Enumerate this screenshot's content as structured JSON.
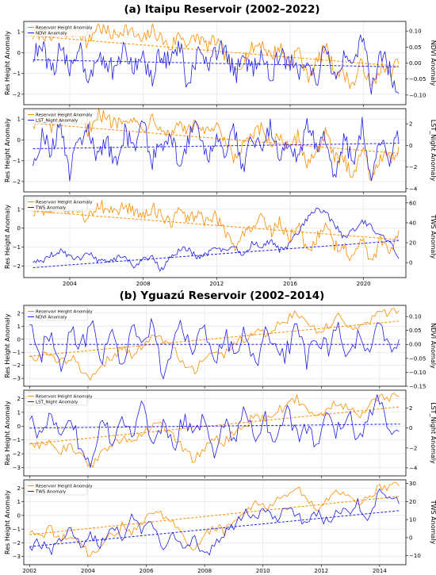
{
  "colors": {
    "reservoir": "#ff8c00",
    "other": "#1f1fe6",
    "grid": "#dcdcdc"
  },
  "sections": [
    {
      "title": "(a) Itaipu Reservoir (2002–2022)",
      "x_ticks": [
        2004,
        2008,
        2012,
        2016,
        2020
      ]
    },
    {
      "title": "(b) Yguazú Reservoir (2002–2014)",
      "x_ticks": [
        2002,
        2004,
        2006,
        2008,
        2010,
        2012,
        2014
      ]
    }
  ],
  "chart_data": [
    {
      "type": "line",
      "section": 0,
      "xlim": [
        2001.5,
        2022.3
      ],
      "ylim": [
        -2.5,
        1.5
      ],
      "y2lim": [
        -0.13,
        0.13
      ],
      "ylabel": "Res Height Anomaly",
      "y2label": "NDVI Anomaly",
      "yticks": [
        -2,
        -1,
        0,
        1
      ],
      "y2ticks": [
        -0.1,
        -0.05,
        0.0,
        0.05,
        0.1
      ],
      "y2dec": 2,
      "grid": true,
      "legend": "top-left",
      "series": [
        {
          "name": "Reservoir Height Anomaly",
          "axis": "left",
          "x0": 2002.0,
          "x1": 2021.9,
          "trend": [
            0.8,
            -0.65
          ],
          "keys": [
            0.8,
            1.0,
            0.6,
            1.2,
            0.9,
            1.1,
            0.4,
            1.3,
            1.0,
            0.8,
            1.2,
            0.9,
            0.5,
            1.1,
            0.7,
            0.2,
            0.9,
            0.4,
            0.8,
            0.3,
            0.6,
            -0.1,
            -1.0,
            -0.3,
            0.2,
            0.5,
            -0.2,
            0.3,
            -0.6,
            0.2,
            -1.2,
            -0.5,
            0.3,
            -0.9,
            -1.0,
            -1.6,
            -0.4,
            -1.8,
            -0.7,
            -1.0,
            -0.4
          ],
          "noise": 0.35
        },
        {
          "name": "NDVI Anomaly",
          "axis": "right",
          "x0": 2002.0,
          "x1": 2021.9,
          "trend": [
            0.01,
            -0.012
          ],
          "keys": [
            0.02,
            0.05,
            -0.03,
            0.04,
            -0.02,
            0.06,
            -0.05,
            0.03,
            0.01,
            -0.04,
            0.05,
            -0.02,
            0.02,
            -0.06,
            0.04,
            0.0,
            0.06,
            -0.08,
            0.03,
            -0.01,
            0.02,
            0.05,
            -0.04,
            0.01,
            -0.02,
            0.04,
            -0.05,
            0.03,
            0.0,
            -0.03,
            0.02,
            -0.06,
            0.05,
            -0.04,
            0.01,
            -0.03,
            0.09,
            -0.07,
            0.03,
            -0.02,
            -0.11
          ],
          "noise": 0.035
        }
      ]
    },
    {
      "type": "line",
      "section": 0,
      "xlim": [
        2001.5,
        2022.3
      ],
      "ylim": [
        -2.5,
        1.5
      ],
      "y2lim": [
        -4.3,
        3.4
      ],
      "ylabel": "Res Height Anomaly",
      "y2label": "LST_Night Anomaly",
      "yticks": [
        -2,
        -1,
        0,
        1
      ],
      "y2ticks": [
        -4,
        -2,
        0,
        2
      ],
      "y2dec": 0,
      "grid": true,
      "legend": "top-left",
      "series": [
        {
          "name": "Reservoir Height Anomaly",
          "axis": "left",
          "x0": 2002.0,
          "x1": 2021.9,
          "trend": [
            0.8,
            -0.65
          ],
          "keys": [
            0.8,
            1.0,
            0.6,
            1.2,
            0.9,
            1.1,
            0.4,
            1.3,
            1.0,
            0.8,
            1.2,
            0.9,
            0.5,
            1.1,
            0.7,
            0.2,
            0.9,
            0.4,
            0.8,
            0.3,
            0.6,
            -0.1,
            -1.0,
            -0.3,
            0.2,
            0.5,
            -0.2,
            0.3,
            -0.6,
            0.2,
            -1.2,
            -0.5,
            0.3,
            -0.9,
            -1.0,
            -1.6,
            -0.4,
            -1.8,
            -0.7,
            -1.0,
            -0.4
          ],
          "noise": 0.35
        },
        {
          "name": "LST_Night Anomaly",
          "axis": "right",
          "x0": 2002.0,
          "x1": 2021.9,
          "trend": [
            -0.3,
            0.2
          ],
          "keys": [
            -1.5,
            1.0,
            -0.5,
            2.0,
            -2.5,
            0.5,
            1.5,
            -1.0,
            0.8,
            -2.0,
            1.2,
            -0.3,
            2.5,
            -1.5,
            0.0,
            1.0,
            -1.8,
            0.6,
            2.2,
            -1.2,
            0.4,
            -0.8,
            1.6,
            -2.2,
            0.9,
            -0.4,
            1.8,
            -1.0,
            0.3,
            -1.6,
            2.4,
            -0.6,
            1.1,
            -2.8,
            0.5,
            -1.4,
            1.9,
            -3.4,
            0.8,
            -1.2,
            1.0
          ],
          "noise": 0.9
        }
      ]
    },
    {
      "type": "line",
      "section": 0,
      "xlim": [
        2001.5,
        2022.3
      ],
      "ylim": [
        -2.6,
        1.7
      ],
      "y2lim": [
        -15,
        67
      ],
      "ylabel": "Res Height Anomaly",
      "y2label": "TWS Anomaly",
      "yticks": [
        -2,
        -1,
        0,
        1
      ],
      "y2ticks": [
        0,
        20,
        40,
        60
      ],
      "y2dec": 0,
      "grid": true,
      "legend": "top-left",
      "series": [
        {
          "name": "Reservoir Height Anomaly",
          "axis": "left",
          "x0": 2002.0,
          "x1": 2021.9,
          "trend": [
            0.9,
            -0.6
          ],
          "keys": [
            0.8,
            1.0,
            0.6,
            1.2,
            0.9,
            1.1,
            0.4,
            1.3,
            1.0,
            0.8,
            1.2,
            0.9,
            0.5,
            1.1,
            0.7,
            0.2,
            0.9,
            0.4,
            0.8,
            0.3,
            0.6,
            -0.1,
            -1.0,
            -0.3,
            0.2,
            0.5,
            -0.2,
            0.3,
            -0.6,
            0.2,
            -1.2,
            -0.5,
            0.3,
            -0.9,
            -1.0,
            -1.6,
            -0.4,
            -1.8,
            -0.7,
            -1.0,
            -0.4
          ],
          "noise": 0.35
        },
        {
          "name": "TWS Anomaly",
          "axis": "right",
          "x0": 2002.0,
          "x1": 2021.9,
          "trend": [
            -5,
            22
          ],
          "keys": [
            1,
            2,
            8,
            12,
            5,
            3,
            10,
            2,
            0,
            4,
            8,
            -3,
            2,
            6,
            -8,
            5,
            12,
            15,
            4,
            8,
            14,
            10,
            18,
            6,
            20,
            15,
            22,
            12,
            18,
            30,
            45,
            55,
            50,
            38,
            25,
            32,
            42,
            35,
            28,
            22,
            5
          ],
          "noise": 3
        }
      ]
    },
    {
      "type": "line",
      "section": 1,
      "xlim": [
        2001.8,
        2014.9
      ],
      "ylim": [
        -3.6,
        2.6
      ],
      "y2lim": [
        -0.15,
        0.14
      ],
      "ylabel": "Res Height Anomaly",
      "y2label": "NDVI Anomaly",
      "yticks": [
        -3,
        -2,
        -1,
        0,
        1,
        2
      ],
      "y2ticks": [
        -0.15,
        -0.1,
        -0.05,
        0.0,
        0.05,
        0.1
      ],
      "y2dec": 2,
      "grid": true,
      "legend": "top-left",
      "series": [
        {
          "name": "Reservoir Height Anomaly",
          "axis": "left",
          "x0": 2002.0,
          "x1": 2014.7,
          "trend": [
            -1.3,
            1.4
          ],
          "keys": [
            -1.2,
            -1.5,
            -1.0,
            -1.8,
            -1.3,
            -2.2,
            -3.0,
            -2.0,
            -1.4,
            -0.8,
            -1.2,
            -0.5,
            0.2,
            0.0,
            -0.6,
            -1.8,
            -2.4,
            -1.6,
            -0.8,
            -1.2,
            -0.4,
            0.0,
            0.8,
            0.5,
            1.0,
            1.5,
            2.0,
            1.2,
            0.6,
            1.0,
            1.8,
            1.2,
            0.8,
            1.2,
            2.2,
            2.0,
            2.3
          ],
          "noise": 0.35
        },
        {
          "name": "NDVI Anomaly",
          "axis": "right",
          "x0": 2002.0,
          "x1": 2014.7,
          "trend": [
            0.0,
            0.0
          ],
          "keys": [
            0.08,
            -0.05,
            0.06,
            -0.08,
            0.04,
            -0.02,
            0.07,
            -0.06,
            0.03,
            -0.09,
            0.05,
            -0.03,
            0.08,
            -0.11,
            0.02,
            0.06,
            -0.04,
            0.07,
            -0.05,
            0.03,
            -0.02,
            0.06,
            -0.08,
            0.05,
            0.02,
            -0.04,
            0.09,
            -0.06,
            0.03,
            -0.02,
            0.07,
            -0.05,
            0.04,
            -0.03,
            0.1,
            -0.04,
            0.03
          ],
          "noise": 0.04
        }
      ]
    },
    {
      "type": "line",
      "section": 1,
      "xlim": [
        2001.8,
        2014.9
      ],
      "ylim": [
        -3.6,
        2.6
      ],
      "y2lim": [
        -4.8,
        3.8
      ],
      "ylabel": "Res Height Anomaly",
      "y2label": "LST_Night Anomaly",
      "yticks": [
        -3,
        -2,
        -1,
        0,
        1,
        2
      ],
      "y2ticks": [
        -4,
        -2,
        0,
        2
      ],
      "y2dec": 0,
      "grid": true,
      "legend": "top-left",
      "series": [
        {
          "name": "Reservoir Height Anomaly",
          "axis": "left",
          "x0": 2002.0,
          "x1": 2014.7,
          "trend": [
            -1.3,
            1.4
          ],
          "keys": [
            -1.2,
            -1.5,
            -1.0,
            -1.8,
            -1.3,
            -2.2,
            -3.0,
            -2.0,
            -1.4,
            -0.8,
            -1.2,
            -0.5,
            0.2,
            0.0,
            -0.6,
            -1.8,
            -2.4,
            -1.6,
            -0.8,
            -1.2,
            -0.4,
            0.0,
            0.8,
            0.5,
            1.0,
            1.5,
            2.0,
            1.2,
            0.6,
            1.0,
            1.8,
            1.2,
            0.8,
            1.2,
            2.2,
            2.0,
            2.3
          ],
          "noise": 0.35
        },
        {
          "name": "LST_Night Anomaly",
          "axis": "right",
          "x0": 2002.0,
          "x1": 2014.7,
          "trend": [
            0.0,
            0.4
          ],
          "keys": [
            1.0,
            -1.2,
            2.0,
            -0.5,
            1.5,
            -2.5,
            -3.5,
            0.8,
            -1.0,
            1.2,
            -0.6,
            2.2,
            -1.5,
            0.4,
            -2.0,
            1.0,
            -0.8,
            1.6,
            -2.8,
            0.6,
            -1.4,
            1.8,
            -0.5,
            0.9,
            -1.6,
            2.5,
            -1.0,
            0.3,
            -2.2,
            1.1,
            -0.4,
            2.0,
            -1.5,
            0.6,
            2.8,
            -0.5,
            0.0
          ],
          "noise": 0.9
        }
      ]
    },
    {
      "type": "line",
      "section": 1,
      "xlim": [
        2001.8,
        2014.9
      ],
      "ylim": [
        -3.6,
        2.6
      ],
      "y2lim": [
        -15,
        32
      ],
      "ylabel": "Res Height Anomaly",
      "y2label": "TWS Anomaly",
      "yticks": [
        -3,
        -2,
        -1,
        0,
        1,
        2
      ],
      "y2ticks": [
        -10,
        0,
        10,
        20,
        30
      ],
      "y2dec": 0,
      "grid": true,
      "legend": "top-left",
      "series": [
        {
          "name": "Reservoir Height Anomaly",
          "axis": "left",
          "x0": 2002.0,
          "x1": 2014.7,
          "trend": [
            -1.4,
            1.4
          ],
          "keys": [
            -1.2,
            -1.5,
            -1.0,
            -1.8,
            -1.3,
            -2.2,
            -3.0,
            -2.0,
            -1.4,
            -0.8,
            -1.2,
            -0.5,
            0.2,
            0.0,
            -0.6,
            -1.8,
            -2.4,
            -1.6,
            -0.8,
            -1.2,
            -0.4,
            0.0,
            0.8,
            0.5,
            1.0,
            1.5,
            2.0,
            1.2,
            0.6,
            1.0,
            1.8,
            1.2,
            0.8,
            1.2,
            2.2,
            2.0,
            2.3
          ],
          "noise": 0.35
        },
        {
          "name": "TWS Anomaly",
          "axis": "right",
          "x0": 2002.0,
          "x1": 2014.7,
          "trend": [
            -5,
            15
          ],
          "keys": [
            -5,
            -3,
            -8,
            -2,
            5,
            -6,
            2,
            -4,
            8,
            0,
            12,
            4,
            8,
            -6,
            2,
            -8,
            0,
            -10,
            -4,
            2,
            8,
            15,
            12,
            16,
            10,
            18,
            13,
            6,
            14,
            8,
            16,
            14,
            20,
            8,
            27,
            24,
            20
          ],
          "noise": 3
        }
      ]
    }
  ]
}
